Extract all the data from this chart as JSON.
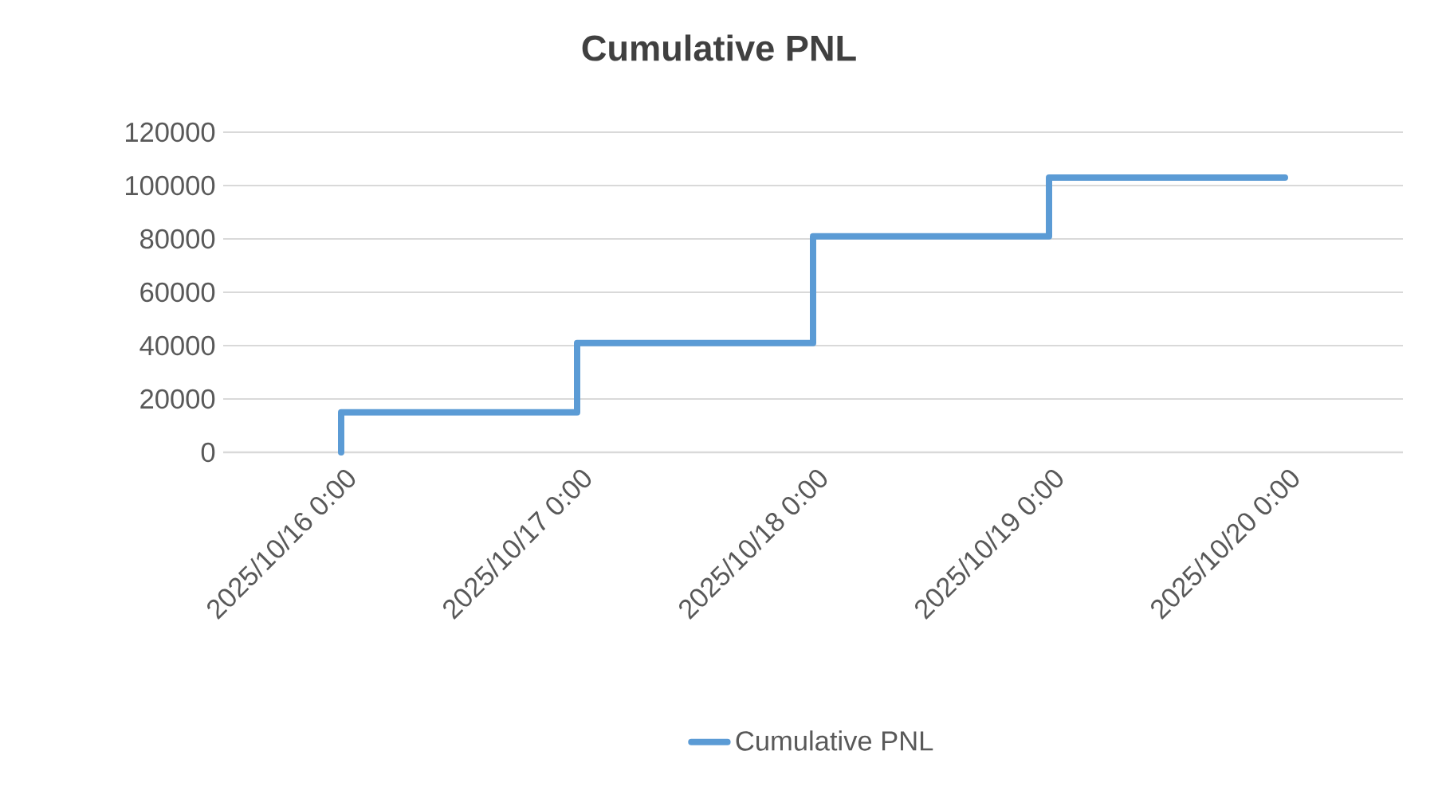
{
  "chart_data": {
    "type": "step",
    "title": "Cumulative PNL",
    "x": [
      "2025-10-16T00:00",
      "2025-10-17T00:00",
      "2025-10-18T00:00",
      "2025-10-19T00:00",
      "2025-10-20T00:00"
    ],
    "series": [
      {
        "name": "Cumulative PNL",
        "color": "#5b9bd5",
        "values": [
          0,
          15000,
          41000,
          81000,
          103000
        ]
      }
    ],
    "xlim": [
      "2025-10-15T12:00",
      "2025-10-20T12:00"
    ],
    "xticks": [
      {
        "value": "2025-10-16T00:00",
        "label": "2025/10/16 0:00"
      },
      {
        "value": "2025-10-17T00:00",
        "label": "2025/10/17 0:00"
      },
      {
        "value": "2025-10-18T00:00",
        "label": "2025/10/18 0:00"
      },
      {
        "value": "2025-10-19T00:00",
        "label": "2025/10/19 0:00"
      },
      {
        "value": "2025-10-20T00:00",
        "label": "2025/10/20 0:00"
      }
    ],
    "ylim": [
      0,
      120000
    ],
    "yticks": [
      0,
      20000,
      40000,
      60000,
      80000,
      100000,
      120000
    ],
    "grid": "y",
    "legend": "bottom"
  }
}
